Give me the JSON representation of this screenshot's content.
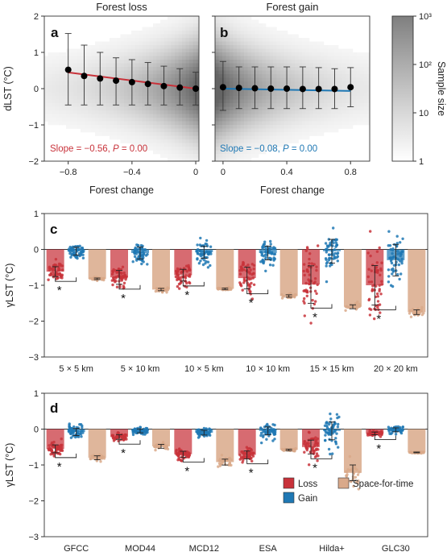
{
  "chart_data": [
    {
      "type": "scatter",
      "panel": "a",
      "title": "Forest loss",
      "xlabel": "Forest change",
      "ylabel": "dLST (°C)",
      "xlim": [
        -0.95,
        0.02
      ],
      "ylim": [
        -2,
        2
      ],
      "xticks": [
        -0.8,
        -0.4,
        0
      ],
      "xtick_labels": [
        "−0.8",
        "−0.4",
        "0"
      ],
      "yticks": [
        -2,
        -1,
        0,
        1,
        2
      ],
      "ytick_labels": [
        "−2",
        "−1",
        "0",
        "1",
        "2"
      ],
      "binned_means": {
        "x": [
          -0.8,
          -0.7,
          -0.6,
          -0.5,
          -0.4,
          -0.3,
          -0.2,
          -0.1,
          0
        ],
        "y": [
          0.52,
          0.35,
          0.28,
          0.22,
          0.18,
          0.13,
          0.07,
          0.03,
          0.0
        ],
        "err_low": [
          -0.45,
          -0.45,
          -0.45,
          -0.45,
          -0.45,
          -0.45,
          -0.45,
          -0.45,
          -0.45
        ],
        "err_high": [
          1.52,
          1.2,
          1.0,
          0.85,
          0.8,
          0.72,
          0.62,
          0.55,
          0.45
        ]
      },
      "fit": {
        "slope": -0.56,
        "intercept": 0.0,
        "color": "#c8323a"
      },
      "annotation": {
        "prefix": "Slope = −0.56, ",
        "p_label": "P",
        "suffix": " = 0.00"
      },
      "panel_label": "a"
    },
    {
      "type": "scatter",
      "panel": "b",
      "title": "Forest gain",
      "xlabel": "Forest change",
      "xlim": [
        -0.05,
        0.92
      ],
      "ylim": [
        -2,
        2
      ],
      "xticks": [
        0,
        0.4,
        0.8
      ],
      "xtick_labels": [
        "0",
        "0.4",
        "0.8"
      ],
      "binned_means": {
        "x": [
          0,
          0.1,
          0.2,
          0.3,
          0.4,
          0.5,
          0.6,
          0.7,
          0.8
        ],
        "y": [
          0.04,
          0.02,
          0.01,
          0.0,
          0.0,
          -0.01,
          -0.01,
          -0.01,
          0.04
        ],
        "err_low": [
          -0.6,
          -0.55,
          -0.55,
          -0.55,
          -0.55,
          -0.55,
          -0.55,
          -0.55,
          -0.5
        ],
        "err_high": [
          0.75,
          0.6,
          0.6,
          0.6,
          0.6,
          0.6,
          0.58,
          0.55,
          0.58
        ]
      },
      "fit": {
        "slope": -0.08,
        "intercept": 0.0,
        "color": "#1f78b4"
      },
      "annotation": {
        "prefix": "Slope = −0.08, ",
        "p_label": "P",
        "suffix": " = 0.00"
      },
      "panel_label": "b",
      "colorbar": {
        "label": "Sample size",
        "scale": "log",
        "range": [
          1,
          1000
        ],
        "ticks": [
          "1",
          "10",
          "10²",
          "10³"
        ]
      }
    },
    {
      "type": "bar",
      "panel": "c",
      "ylabel": "γLST (°C)",
      "ylim": [
        -3,
        1
      ],
      "yticks": [
        1,
        0,
        -1,
        -2,
        -3
      ],
      "ytick_labels": [
        "1",
        "0",
        "−1",
        "−2",
        "−3"
      ],
      "categories": [
        "5 × 5 km",
        "5 × 10 km",
        "10 × 5 km",
        "10 × 10 km",
        "15 × 15 km",
        "20 × 20 km"
      ],
      "series": [
        {
          "name": "Loss",
          "color": "#c8323a",
          "values": [
            -0.62,
            -0.78,
            -0.72,
            -0.8,
            -0.98,
            -1.0
          ],
          "spread": [
            0.25,
            0.35,
            0.3,
            0.55,
            0.95,
            1.0
          ]
        },
        {
          "name": "Gain",
          "color": "#1f78b4",
          "values": [
            -0.05,
            -0.1,
            -0.08,
            -0.1,
            -0.05,
            -0.3
          ],
          "spread": [
            0.2,
            0.3,
            0.3,
            0.35,
            0.6,
            0.8
          ]
        },
        {
          "name": "Space-for-time",
          "color": "#d9a98a",
          "values": [
            -0.82,
            -1.12,
            -1.1,
            -1.3,
            -1.6,
            -1.75
          ],
          "spread": [
            0.04,
            0.06,
            0.04,
            0.06,
            0.1,
            0.12
          ]
        }
      ],
      "significance": [
        "*",
        "*",
        "*",
        "*",
        "*",
        "*"
      ],
      "panel_label": "c"
    },
    {
      "type": "bar",
      "panel": "d",
      "ylabel": "γLST (°C)",
      "ylim": [
        -3,
        1
      ],
      "yticks": [
        1,
        0,
        -1,
        -2,
        -3
      ],
      "ytick_labels": [
        "1",
        "0",
        "−1",
        "−2",
        "−3"
      ],
      "categories": [
        "GFCC",
        "MOD44",
        "MCD12",
        "ESA",
        "Hilda+",
        "GLC30"
      ],
      "series": [
        {
          "name": "Loss",
          "color": "#c8323a",
          "values": [
            -0.55,
            -0.22,
            -0.7,
            -0.72,
            -0.5,
            -0.12
          ],
          "spread": [
            0.2,
            0.12,
            0.15,
            0.2,
            0.35,
            0.07
          ]
        },
        {
          "name": "Gain",
          "color": "#1f78b4",
          "values": [
            -0.08,
            -0.05,
            -0.1,
            -0.05,
            -0.05,
            -0.02
          ],
          "spread": [
            0.18,
            0.1,
            0.12,
            0.2,
            0.45,
            0.1
          ]
        },
        {
          "name": "Space-for-time",
          "color": "#d9a98a",
          "values": [
            -0.8,
            -0.48,
            -0.92,
            -0.58,
            -1.22,
            -0.65
          ],
          "spread": [
            0.1,
            0.1,
            0.15,
            0.04,
            0.4,
            0.02
          ]
        }
      ],
      "significance": [
        "*",
        "*",
        "*",
        "*",
        "*",
        "*"
      ],
      "legend": {
        "placement": "bottom-right",
        "entries": [
          "Loss",
          "Gain",
          "Space-for-time"
        ]
      },
      "panel_label": "d"
    }
  ]
}
